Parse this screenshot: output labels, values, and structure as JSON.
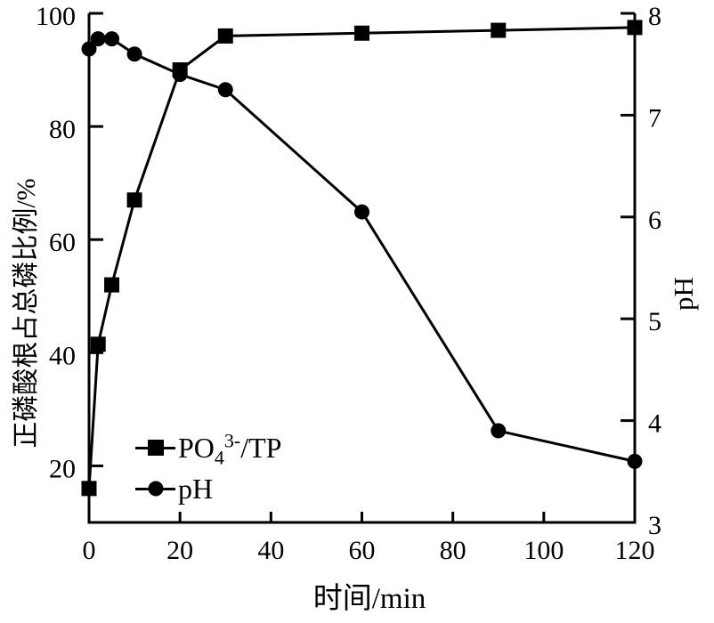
{
  "figure": {
    "background": "#ffffff",
    "ink": "#000000"
  },
  "chart_data": {
    "type": "line",
    "x": [
      0,
      2,
      5,
      10,
      20,
      30,
      60,
      90,
      120
    ],
    "x_range": [
      0,
      120
    ],
    "x_ticks": [
      0,
      20,
      40,
      60,
      80,
      100,
      120
    ],
    "xlabel": "时间/min",
    "left_axis": {
      "label": "正磷酸根占总磷比例/%",
      "range": [
        10,
        100
      ],
      "ticks": [
        20,
        40,
        60,
        80,
        100
      ]
    },
    "right_axis": {
      "label": "pH",
      "range": [
        3,
        8
      ],
      "ticks": [
        3,
        4,
        5,
        6,
        7,
        8
      ]
    },
    "grid": false,
    "legend_position": "lower-left-inside",
    "series": [
      {
        "key": "po4-tp",
        "name": "PO₄³⁻/TP",
        "axis": "left",
        "marker": "square",
        "values": [
          16,
          41.5,
          52,
          67,
          90,
          96,
          96.5,
          97,
          97.5
        ]
      },
      {
        "key": "ph",
        "name": "pH",
        "axis": "right",
        "marker": "circle",
        "values": [
          7.65,
          7.75,
          7.75,
          7.6,
          7.4,
          7.25,
          6.05,
          3.9,
          3.6
        ]
      }
    ]
  },
  "legend": {
    "po4": {
      "base1": "PO",
      "sub": "4",
      "sup": "3-",
      "base2": "/TP"
    },
    "ph": {
      "label": "pH"
    }
  }
}
